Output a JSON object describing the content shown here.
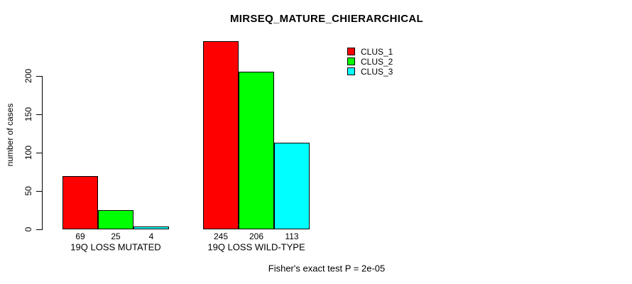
{
  "chart_data": {
    "type": "bar",
    "title": "MIRSEQ_MATURE_CHIERARCHICAL",
    "ylabel": "number of cases",
    "xlabel": "",
    "footer": "Fisher's exact test P = 2e-05",
    "categories": [
      "19Q LOSS MUTATED",
      "19Q LOSS WILD-TYPE"
    ],
    "series": [
      {
        "name": "CLUS_1",
        "color": "#ff0000",
        "values": [
          69,
          245
        ]
      },
      {
        "name": "CLUS_2",
        "color": "#00ff00",
        "values": [
          25,
          206
        ]
      },
      {
        "name": "CLUS_3",
        "color": "#00ffff",
        "values": [
          4,
          113
        ]
      }
    ],
    "bar_labels_shown": true,
    "yticks": [
      0,
      50,
      100,
      150,
      200
    ],
    "ylim": [
      0,
      250
    ],
    "grid": false,
    "legend_position": "top-right"
  },
  "colors": {
    "background": "#ffffff",
    "text": "#000000",
    "bar_border": "#000000"
  }
}
